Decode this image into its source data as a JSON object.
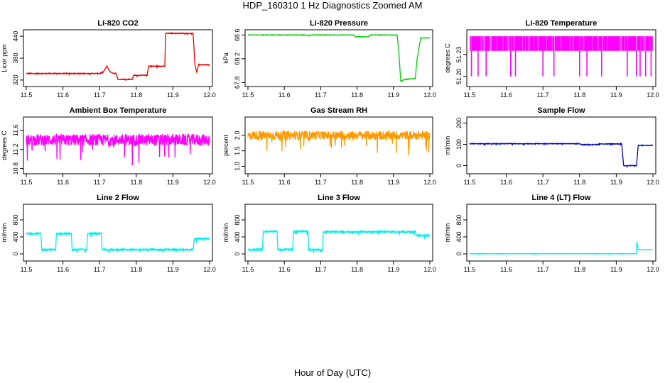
{
  "figure": {
    "title": "HDP_160310  1 Hz Diagnostics Zoomed AM",
    "xlabel": "Hour of Day (UTC)"
  },
  "chart_data": [
    {
      "type": "line",
      "title": "Li-820 CO2",
      "ylabel": "Licor ppm",
      "color": "#ee0000",
      "xlim": [
        11.5,
        12.0
      ],
      "xticks": [
        "11.5",
        "11.6",
        "11.7",
        "11.8",
        "11.9",
        "12.0"
      ],
      "ylim": [
        310,
        450
      ],
      "yticks": [
        "320",
        "380",
        "440"
      ],
      "grid": false,
      "noise": 1,
      "series": [
        {
          "x": [
            11.5,
            11.7,
            11.71,
            11.715,
            11.72,
            11.728,
            11.74,
            11.745,
            11.75,
            11.752,
            11.79,
            11.792,
            11.83,
            11.833,
            11.878,
            11.88,
            11.955,
            11.96,
            11.965,
            11.97,
            12.0
          ],
          "y": [
            338,
            338,
            342,
            350,
            358,
            343,
            338,
            338,
            322,
            322,
            322,
            333,
            333,
            358,
            358,
            448,
            448,
            362,
            342,
            362,
            362
          ]
        }
      ]
    },
    {
      "type": "line",
      "title": "Li-820 Pressure",
      "ylabel": "kPa",
      "color": "#00cc00",
      "xlim": [
        11.5,
        12.0
      ],
      "xticks": [
        "11.5",
        "11.6",
        "11.7",
        "11.8",
        "11.9",
        "12.0"
      ],
      "ylim": [
        67.78,
        68.64
      ],
      "yticks": [
        "67.8",
        "68.2",
        "68.6"
      ],
      "grid": false,
      "noise": 0.004,
      "series": [
        {
          "x": [
            11.5,
            11.665,
            11.667,
            11.67,
            11.79,
            11.795,
            11.83,
            11.835,
            11.91,
            11.915,
            11.92,
            11.93,
            11.96,
            11.965,
            11.975,
            12.0
          ],
          "y": [
            68.6,
            68.6,
            68.58,
            68.6,
            68.6,
            68.57,
            68.57,
            68.6,
            68.6,
            68.3,
            67.82,
            67.85,
            67.87,
            68.2,
            68.55,
            68.55
          ]
        }
      ]
    },
    {
      "type": "line",
      "title": "Li-820 Temperature",
      "ylabel": "degrees C",
      "color": "#ff00ff",
      "xlim": [
        11.5,
        12.0
      ],
      "xticks": [
        "11.5",
        "11.6",
        "11.7",
        "11.8",
        "11.9",
        "12.0"
      ],
      "ylim": [
        51.19,
        51.26
      ],
      "yticks": [
        "51.20",
        "51.23"
      ],
      "grid": false,
      "series": [
        {
          "x": [
            11.5,
            12.0
          ],
          "y_high": 51.255,
          "y_low": 51.235,
          "spikes_to": 51.2,
          "spike_x": [
            11.505,
            11.523,
            11.545,
            11.612,
            11.625,
            11.7,
            11.73,
            11.8,
            11.82,
            11.86,
            11.93,
            11.955,
            11.965,
            11.98,
            11.995
          ]
        }
      ]
    },
    {
      "type": "line",
      "title": "Ambient Box Temperature",
      "ylabel": "degrees C",
      "color": "#ff00ff",
      "xlim": [
        11.5,
        12.0
      ],
      "xticks": [
        "11.5",
        "11.6",
        "11.7",
        "11.8",
        "11.9",
        "12.0"
      ],
      "ylim": [
        10.75,
        11.82
      ],
      "yticks": [
        "10.8",
        "11.2",
        "11.6"
      ],
      "grid": false,
      "noise": 0.12,
      "series": [
        {
          "x": [
            11.5,
            12.0
          ],
          "y": [
            11.4,
            11.4
          ]
        }
      ]
    },
    {
      "type": "line",
      "title": "Gas Stream RH",
      "ylabel": "percent",
      "color": "#ff9900",
      "xlim": [
        11.5,
        12.0
      ],
      "xticks": [
        "11.5",
        "11.6",
        "11.7",
        "11.8",
        "11.9",
        "12.0"
      ],
      "ylim": [
        0.85,
        2.5
      ],
      "yticks": [
        "1.0",
        "1.5",
        "2.0"
      ],
      "grid": false,
      "noise": 0.14,
      "series": [
        {
          "x": [
            11.5,
            12.0
          ],
          "y": [
            2.0,
            2.0
          ]
        }
      ]
    },
    {
      "type": "line",
      "title": "Sample Flow",
      "ylabel": "ml/min",
      "color": "#0000cc",
      "xlim": [
        11.5,
        12.0
      ],
      "xticks": [
        "11.5",
        "11.6",
        "11.7",
        "11.8",
        "11.9",
        "12.0"
      ],
      "ylim": [
        -25,
        215
      ],
      "yticks": [
        "0",
        "100",
        "200"
      ],
      "grid": false,
      "noise": 1.5,
      "series": [
        {
          "x": [
            11.5,
            11.8,
            11.805,
            11.85,
            11.855,
            11.915,
            11.92,
            11.955,
            11.96,
            12.0
          ],
          "y": [
            103,
            103,
            99,
            99,
            102,
            102,
            0,
            0,
            95,
            95
          ]
        }
      ]
    },
    {
      "type": "line",
      "title": "Line 2 Flow",
      "ylabel": "ml/min",
      "color": "#00eeee",
      "xlim": [
        11.5,
        12.0
      ],
      "xticks": [
        "11.5",
        "11.6",
        "11.7",
        "11.8",
        "11.9",
        "12.0"
      ],
      "ylim": [
        -100,
        1100
      ],
      "yticks": [
        "0",
        "400",
        "800"
      ],
      "grid": false,
      "noise": 20,
      "series": [
        {
          "x": [
            11.5,
            11.54,
            11.542,
            11.58,
            11.582,
            11.623,
            11.625,
            11.665,
            11.667,
            11.705,
            11.707,
            11.955,
            11.958,
            12.0
          ],
          "y": [
            480,
            480,
            100,
            100,
            480,
            480,
            100,
            100,
            480,
            480,
            100,
            100,
            360,
            360
          ]
        }
      ]
    },
    {
      "type": "line",
      "title": "Line 3 Flow",
      "ylabel": "ml/min",
      "color": "#00eeee",
      "xlim": [
        11.5,
        12.0
      ],
      "xticks": [
        "11.5",
        "11.6",
        "11.7",
        "11.8",
        "11.9",
        "12.0"
      ],
      "ylim": [
        -100,
        1100
      ],
      "yticks": [
        "0",
        "400",
        "800"
      ],
      "grid": false,
      "noise": 20,
      "series": [
        {
          "x": [
            11.5,
            11.54,
            11.542,
            11.58,
            11.582,
            11.623,
            11.625,
            11.665,
            11.667,
            11.705,
            11.707,
            11.96,
            11.963,
            12.0
          ],
          "y": [
            100,
            100,
            530,
            530,
            100,
            100,
            530,
            530,
            100,
            100,
            520,
            520,
            430,
            430
          ]
        }
      ]
    },
    {
      "type": "line",
      "title": "Line 4 (LT) Flow",
      "ylabel": "ml/min",
      "color": "#00eeee",
      "xlim": [
        11.5,
        12.0
      ],
      "xticks": [
        "11.5",
        "11.6",
        "11.7",
        "11.8",
        "11.9",
        "12.0"
      ],
      "ylim": [
        -100,
        1100
      ],
      "yticks": [
        "0",
        "400",
        "800"
      ],
      "grid": false,
      "noise": 3,
      "series": [
        {
          "x": [
            11.5,
            11.955,
            11.956,
            11.96,
            11.963,
            12.0
          ],
          "y": [
            5,
            5,
            300,
            100,
            100,
            100
          ]
        }
      ]
    }
  ]
}
